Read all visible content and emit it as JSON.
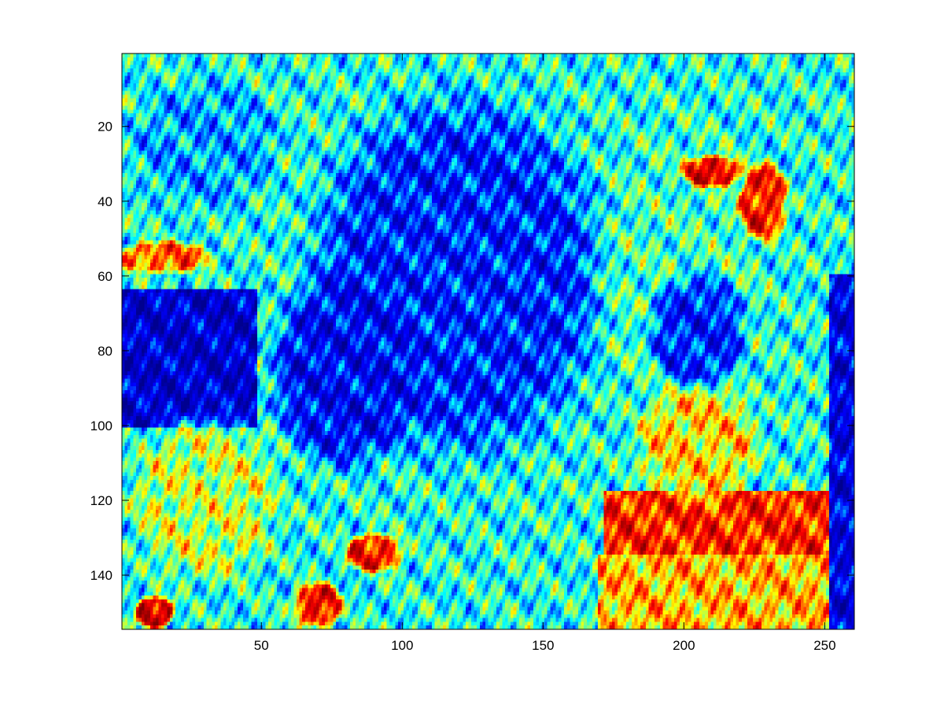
{
  "chart_data": {
    "type": "heatmap",
    "title": "",
    "xlabel": "",
    "ylabel": "",
    "colormap": "jet",
    "colormap_stops": [
      "#00008f",
      "#0000ff",
      "#00ffff",
      "#ffff00",
      "#ff0000",
      "#800000"
    ],
    "image_width": 260,
    "image_height": 154,
    "xlim": [
      0.5,
      260.5
    ],
    "ylim": [
      0.5,
      154.5
    ],
    "y_direction": "reverse",
    "x_ticks": [
      {
        "value": 50,
        "label": "50"
      },
      {
        "value": 100,
        "label": "100"
      },
      {
        "value": 150,
        "label": "150"
      },
      {
        "value": 200,
        "label": "200"
      },
      {
        "value": 250,
        "label": "250"
      }
    ],
    "y_ticks": [
      {
        "value": 20,
        "label": "20"
      },
      {
        "value": 40,
        "label": "40"
      },
      {
        "value": 60,
        "label": "60"
      },
      {
        "value": 80,
        "label": "80"
      },
      {
        "value": 100,
        "label": "100"
      },
      {
        "value": 120,
        "label": "120"
      },
      {
        "value": 140,
        "label": "140"
      }
    ],
    "grid": false,
    "legend": "none",
    "regions": [
      {
        "shape": "ellipse",
        "cx": 120,
        "cy": 60,
        "rx": 60,
        "ry": 55,
        "value": 0.22
      },
      {
        "shape": "ellipse",
        "cx": 80,
        "cy": 85,
        "rx": 30,
        "ry": 30,
        "value": 0.18
      },
      {
        "shape": "rect",
        "x0": 1,
        "y0": 64,
        "x1": 48,
        "y1": 100,
        "value": 0.12
      },
      {
        "shape": "ellipse",
        "cx": 200,
        "cy": 60,
        "rx": 35,
        "ry": 50,
        "value": 0.45
      },
      {
        "shape": "ellipse",
        "cx": 205,
        "cy": 75,
        "rx": 20,
        "ry": 18,
        "value": 0.22
      },
      {
        "shape": "ellipse",
        "cx": 210,
        "cy": 32,
        "rx": 12,
        "ry": 5,
        "value": 0.85
      },
      {
        "shape": "ellipse",
        "cx": 228,
        "cy": 40,
        "rx": 10,
        "ry": 12,
        "value": 0.8
      },
      {
        "shape": "rect",
        "x0": 172,
        "y0": 118,
        "x1": 260,
        "y1": 138,
        "value": 0.78
      },
      {
        "shape": "rect",
        "x0": 170,
        "y0": 135,
        "x1": 260,
        "y1": 154,
        "value": 0.65
      },
      {
        "shape": "ellipse",
        "cx": 205,
        "cy": 105,
        "rx": 25,
        "ry": 18,
        "value": 0.62
      },
      {
        "shape": "ellipse",
        "cx": 90,
        "cy": 134,
        "rx": 12,
        "ry": 6,
        "value": 0.8
      },
      {
        "shape": "ellipse",
        "cx": 70,
        "cy": 148,
        "rx": 10,
        "ry": 7,
        "value": 0.82
      },
      {
        "shape": "ellipse",
        "cx": 12,
        "cy": 150,
        "rx": 8,
        "ry": 5,
        "value": 0.9
      },
      {
        "shape": "ellipse",
        "cx": 15,
        "cy": 55,
        "rx": 20,
        "ry": 5,
        "value": 0.72
      },
      {
        "shape": "rect",
        "x0": 252,
        "y0": 60,
        "x1": 260,
        "y1": 154,
        "value": 0.15
      },
      {
        "shape": "ellipse",
        "cx": 30,
        "cy": 120,
        "rx": 30,
        "ry": 25,
        "value": 0.55
      },
      {
        "shape": "ellipse",
        "cx": 30,
        "cy": 25,
        "rx": 30,
        "ry": 20,
        "value": 0.33
      }
    ]
  }
}
